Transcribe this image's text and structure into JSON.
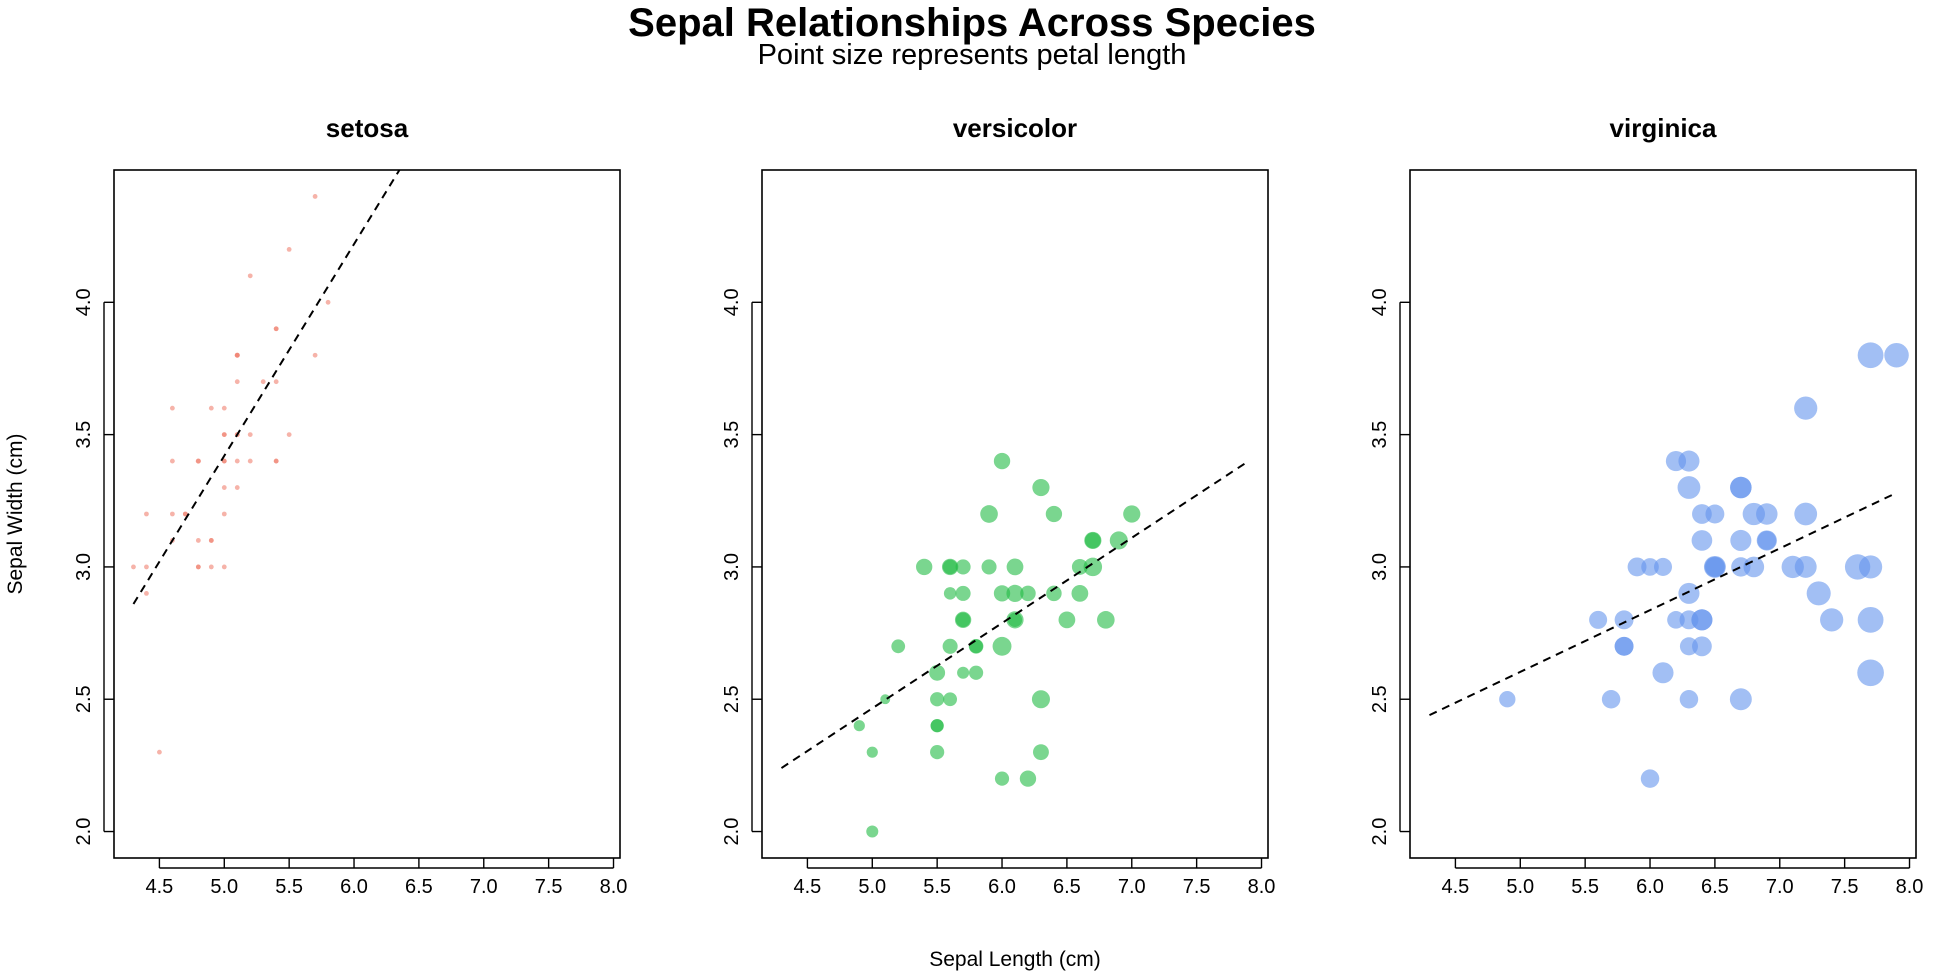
{
  "title": "Sepal Relationships Across Species",
  "subtitle": "Point size represents petal length",
  "xlabel": "Sepal Length (cm)",
  "ylabel": "Sepal Width (cm)",
  "chart_data": [
    {
      "type": "scatter",
      "title": "setosa",
      "color": "#F08070",
      "xlim": [
        4.15,
        8.05
      ],
      "ylim": [
        1.9,
        4.5
      ],
      "xticks": [
        "4.5",
        "5.0",
        "5.5",
        "6.0",
        "6.5",
        "7.0",
        "7.5",
        "8.0"
      ],
      "yticks": [
        "2.0",
        "2.5",
        "3.0",
        "3.5",
        "4.0"
      ],
      "trend": {
        "x": [
          4.3,
          6.35
        ],
        "y": [
          2.86,
          4.5
        ]
      },
      "points": [
        [
          5.1,
          3.5,
          1.4
        ],
        [
          4.9,
          3.0,
          1.4
        ],
        [
          4.7,
          3.2,
          1.3
        ],
        [
          4.6,
          3.1,
          1.5
        ],
        [
          5.0,
          3.6,
          1.4
        ],
        [
          5.4,
          3.9,
          1.7
        ],
        [
          4.6,
          3.4,
          1.4
        ],
        [
          5.0,
          3.4,
          1.5
        ],
        [
          4.4,
          2.9,
          1.4
        ],
        [
          4.9,
          3.1,
          1.5
        ],
        [
          5.4,
          3.7,
          1.5
        ],
        [
          4.8,
          3.4,
          1.6
        ],
        [
          4.8,
          3.0,
          1.4
        ],
        [
          4.3,
          3.0,
          1.1
        ],
        [
          5.8,
          4.0,
          1.2
        ],
        [
          5.7,
          4.4,
          1.5
        ],
        [
          5.4,
          3.9,
          1.3
        ],
        [
          5.1,
          3.5,
          1.4
        ],
        [
          5.7,
          3.8,
          1.7
        ],
        [
          5.1,
          3.8,
          1.5
        ],
        [
          5.4,
          3.4,
          1.7
        ],
        [
          5.1,
          3.7,
          1.5
        ],
        [
          4.6,
          3.6,
          1.0
        ],
        [
          5.1,
          3.3,
          1.7
        ],
        [
          4.8,
          3.4,
          1.9
        ],
        [
          5.0,
          3.0,
          1.6
        ],
        [
          5.0,
          3.4,
          1.6
        ],
        [
          5.2,
          3.5,
          1.5
        ],
        [
          5.2,
          3.4,
          1.4
        ],
        [
          4.7,
          3.2,
          1.6
        ],
        [
          4.8,
          3.1,
          1.6
        ],
        [
          5.4,
          3.4,
          1.5
        ],
        [
          5.2,
          4.1,
          1.5
        ],
        [
          5.5,
          4.2,
          1.4
        ],
        [
          4.9,
          3.1,
          1.5
        ],
        [
          5.0,
          3.2,
          1.2
        ],
        [
          5.5,
          3.5,
          1.3
        ],
        [
          4.9,
          3.6,
          1.4
        ],
        [
          4.4,
          3.0,
          1.3
        ],
        [
          5.1,
          3.4,
          1.5
        ],
        [
          5.0,
          3.5,
          1.3
        ],
        [
          4.5,
          2.3,
          1.3
        ],
        [
          4.4,
          3.2,
          1.3
        ],
        [
          5.0,
          3.5,
          1.6
        ],
        [
          5.1,
          3.8,
          1.9
        ],
        [
          4.8,
          3.0,
          1.4
        ],
        [
          5.1,
          3.8,
          1.6
        ],
        [
          4.6,
          3.2,
          1.4
        ],
        [
          5.3,
          3.7,
          1.5
        ],
        [
          5.0,
          3.3,
          1.4
        ]
      ]
    },
    {
      "type": "scatter",
      "title": "versicolor",
      "color": "#22BB45",
      "xlim": [
        4.15,
        8.05
      ],
      "ylim": [
        1.9,
        4.5
      ],
      "xticks": [
        "4.5",
        "5.0",
        "5.5",
        "6.0",
        "6.5",
        "7.0",
        "7.5",
        "8.0"
      ],
      "yticks": [
        "2.0",
        "2.5",
        "3.0",
        "3.5",
        "4.0"
      ],
      "trend": {
        "x": [
          4.3,
          7.9
        ],
        "y": [
          2.24,
          3.4
        ]
      },
      "points": [
        [
          7.0,
          3.2,
          4.7
        ],
        [
          6.4,
          3.2,
          4.5
        ],
        [
          6.9,
          3.1,
          4.9
        ],
        [
          5.5,
          2.3,
          4.0
        ],
        [
          6.5,
          2.8,
          4.6
        ],
        [
          5.7,
          2.8,
          4.5
        ],
        [
          6.3,
          3.3,
          4.7
        ],
        [
          4.9,
          2.4,
          3.3
        ],
        [
          6.6,
          2.9,
          4.6
        ],
        [
          5.2,
          2.7,
          3.9
        ],
        [
          5.0,
          2.0,
          3.5
        ],
        [
          5.9,
          3.0,
          4.2
        ],
        [
          6.0,
          2.2,
          4.0
        ],
        [
          6.1,
          2.9,
          4.7
        ],
        [
          5.6,
          2.9,
          3.6
        ],
        [
          6.7,
          3.1,
          4.4
        ],
        [
          5.6,
          3.0,
          4.5
        ],
        [
          5.8,
          2.7,
          4.1
        ],
        [
          6.2,
          2.2,
          4.5
        ],
        [
          5.6,
          2.5,
          3.9
        ],
        [
          5.9,
          3.2,
          4.8
        ],
        [
          6.1,
          2.8,
          4.0
        ],
        [
          6.3,
          2.5,
          4.9
        ],
        [
          6.1,
          2.8,
          4.7
        ],
        [
          6.4,
          2.9,
          4.3
        ],
        [
          6.6,
          3.0,
          4.4
        ],
        [
          6.8,
          2.8,
          4.8
        ],
        [
          6.7,
          3.0,
          5.0
        ],
        [
          6.0,
          2.9,
          4.5
        ],
        [
          5.7,
          2.6,
          3.5
        ],
        [
          5.5,
          2.4,
          3.8
        ],
        [
          5.5,
          2.4,
          3.7
        ],
        [
          5.8,
          2.7,
          3.9
        ],
        [
          6.0,
          2.7,
          5.1
        ],
        [
          5.4,
          3.0,
          4.5
        ],
        [
          6.0,
          3.4,
          4.5
        ],
        [
          6.7,
          3.1,
          4.7
        ],
        [
          6.3,
          2.3,
          4.4
        ],
        [
          5.6,
          3.0,
          4.1
        ],
        [
          5.5,
          2.5,
          4.0
        ],
        [
          5.5,
          2.6,
          4.4
        ],
        [
          6.1,
          3.0,
          4.6
        ],
        [
          5.8,
          2.6,
          4.0
        ],
        [
          5.0,
          2.3,
          3.3
        ],
        [
          5.6,
          2.7,
          4.2
        ],
        [
          5.7,
          3.0,
          4.2
        ],
        [
          5.7,
          2.9,
          4.2
        ],
        [
          6.2,
          2.9,
          4.3
        ],
        [
          5.1,
          2.5,
          3.0
        ],
        [
          5.7,
          2.8,
          4.1
        ]
      ]
    },
    {
      "type": "scatter",
      "title": "virginica",
      "color": "#6495ED",
      "xlim": [
        4.15,
        8.05
      ],
      "ylim": [
        1.9,
        4.5
      ],
      "xticks": [
        "4.5",
        "5.0",
        "5.5",
        "6.0",
        "6.5",
        "7.0",
        "7.5",
        "8.0"
      ],
      "yticks": [
        "2.0",
        "2.5",
        "3.0",
        "3.5",
        "4.0"
      ],
      "trend": {
        "x": [
          4.3,
          7.9
        ],
        "y": [
          2.44,
          3.28
        ]
      },
      "points": [
        [
          6.3,
          3.3,
          6.0
        ],
        [
          5.8,
          2.7,
          5.1
        ],
        [
          7.1,
          3.0,
          5.9
        ],
        [
          6.3,
          2.9,
          5.6
        ],
        [
          6.5,
          3.0,
          5.8
        ],
        [
          7.6,
          3.0,
          6.6
        ],
        [
          4.9,
          2.5,
          4.5
        ],
        [
          7.3,
          2.9,
          6.3
        ],
        [
          6.7,
          2.5,
          5.8
        ],
        [
          7.2,
          3.6,
          6.1
        ],
        [
          6.5,
          3.2,
          5.1
        ],
        [
          6.4,
          2.7,
          5.3
        ],
        [
          6.8,
          3.0,
          5.5
        ],
        [
          5.7,
          2.5,
          5.0
        ],
        [
          5.8,
          2.8,
          5.1
        ],
        [
          6.4,
          3.2,
          5.3
        ],
        [
          6.5,
          3.0,
          5.5
        ],
        [
          7.7,
          3.8,
          6.7
        ],
        [
          7.7,
          2.6,
          6.9
        ],
        [
          6.0,
          2.2,
          5.0
        ],
        [
          6.9,
          3.2,
          5.7
        ],
        [
          5.6,
          2.8,
          4.9
        ],
        [
          7.7,
          2.8,
          6.7
        ],
        [
          6.3,
          2.7,
          4.9
        ],
        [
          6.7,
          3.3,
          5.7
        ],
        [
          7.2,
          3.2,
          6.0
        ],
        [
          6.2,
          2.8,
          4.8
        ],
        [
          6.1,
          3.0,
          4.9
        ],
        [
          6.4,
          2.8,
          5.6
        ],
        [
          7.2,
          3.0,
          5.8
        ],
        [
          7.4,
          2.8,
          6.1
        ],
        [
          7.9,
          3.8,
          6.4
        ],
        [
          6.4,
          2.8,
          5.6
        ],
        [
          6.3,
          2.8,
          5.1
        ],
        [
          6.1,
          2.6,
          5.6
        ],
        [
          7.7,
          3.0,
          6.1
        ],
        [
          6.3,
          3.4,
          5.6
        ],
        [
          6.4,
          3.1,
          5.5
        ],
        [
          6.0,
          3.0,
          4.8
        ],
        [
          6.9,
          3.1,
          5.4
        ],
        [
          6.7,
          3.1,
          5.6
        ],
        [
          6.9,
          3.1,
          5.1
        ],
        [
          5.8,
          2.7,
          5.1
        ],
        [
          6.8,
          3.2,
          5.9
        ],
        [
          6.7,
          3.3,
          5.7
        ],
        [
          6.7,
          3.0,
          5.2
        ],
        [
          6.3,
          2.5,
          5.0
        ],
        [
          6.5,
          3.0,
          5.2
        ],
        [
          6.2,
          3.4,
          5.4
        ],
        [
          5.9,
          3.0,
          5.1
        ]
      ]
    }
  ]
}
